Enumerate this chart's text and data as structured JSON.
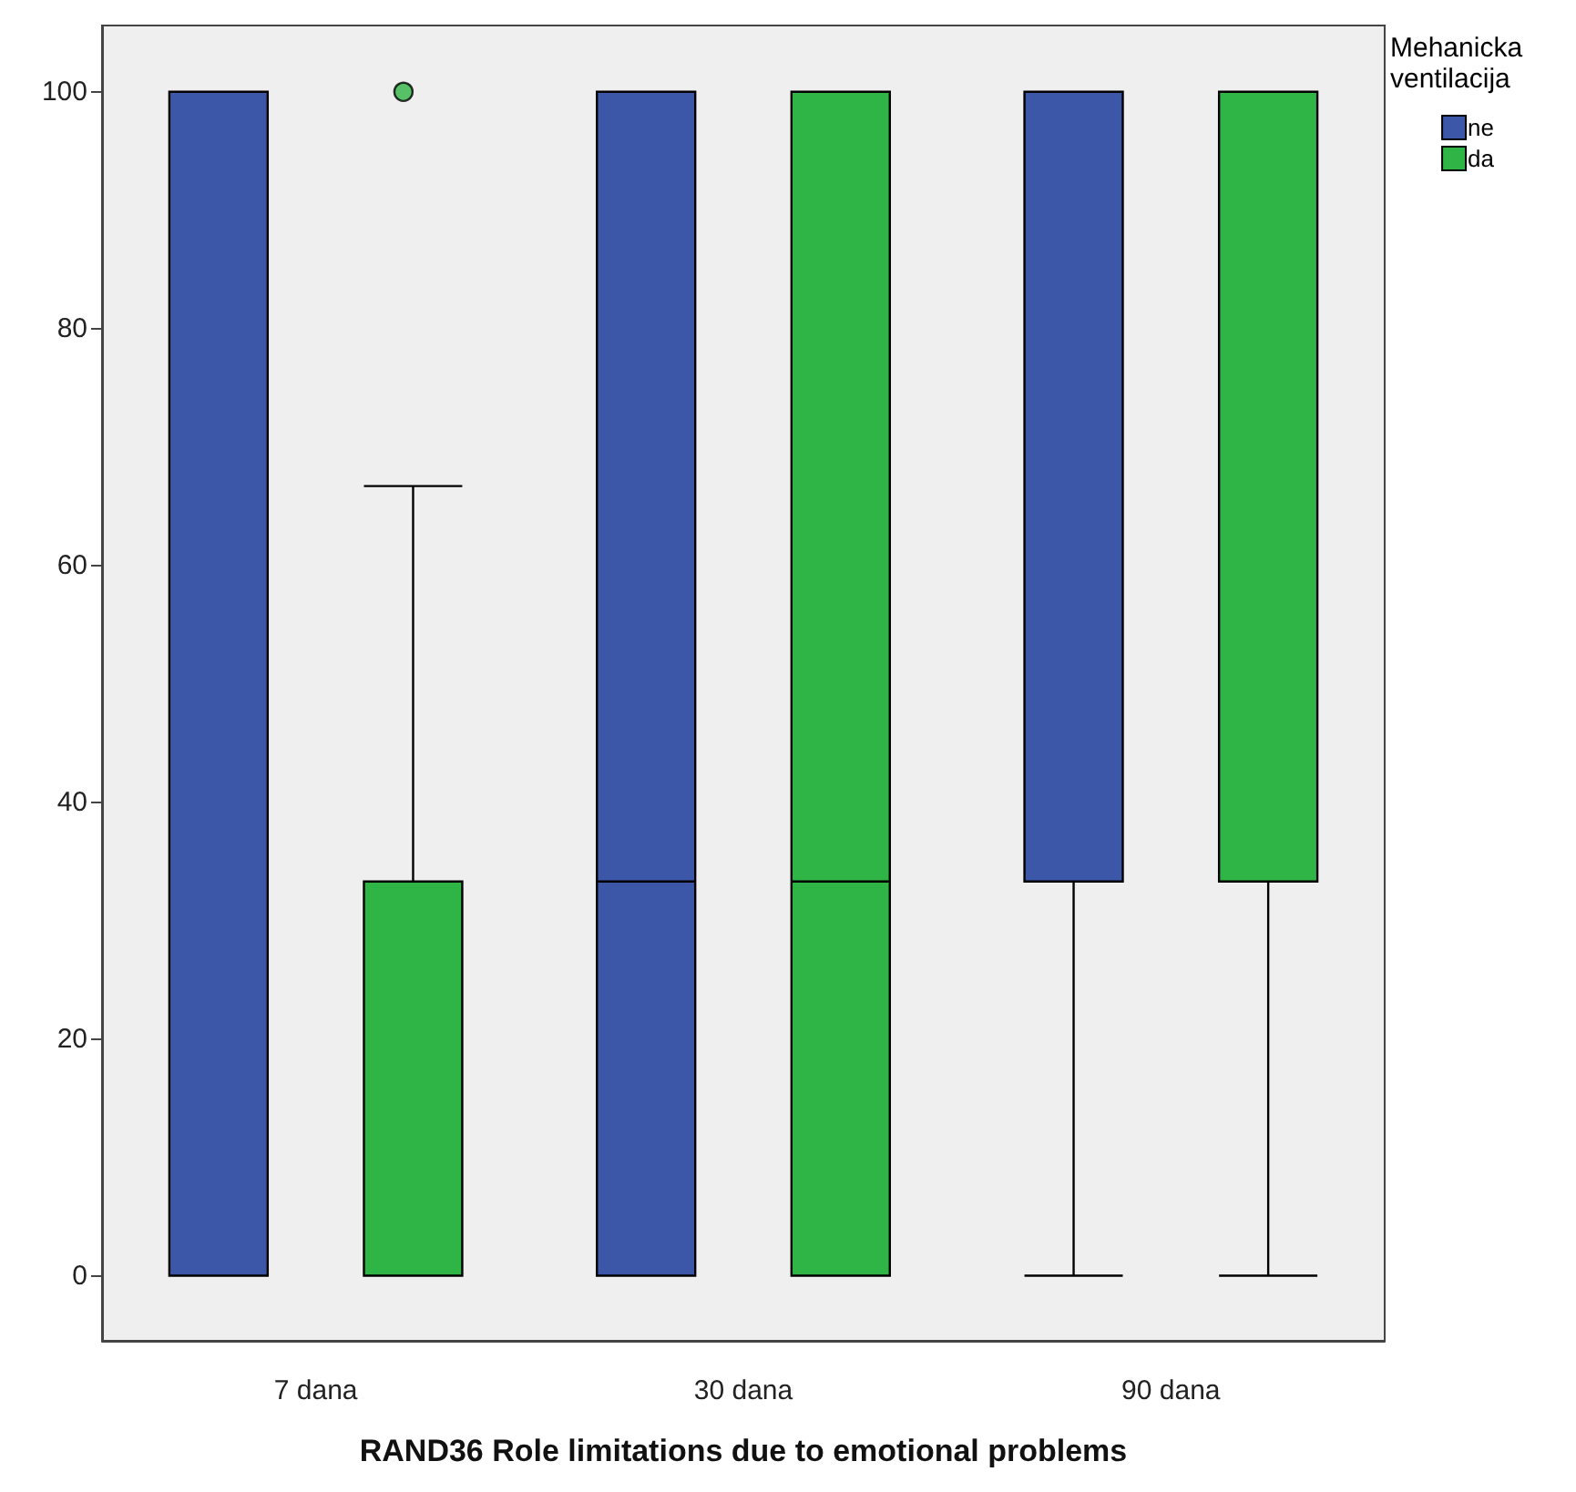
{
  "chart_data": {
    "type": "box",
    "xlabel": "RAND36 Role limitations due to emotional problems",
    "legend_title": "Mehanicka ventilacija",
    "legend": "top right",
    "categories": [
      "7 dana",
      "30 dana",
      "90 dana"
    ],
    "ylim": [
      -5.5,
      105.6
    ],
    "yticks": [
      0,
      20,
      40,
      60,
      80,
      100
    ],
    "grid": false,
    "series": [
      {
        "name": "ne",
        "color": "#3c56a8",
        "boxes": [
          {
            "low": 0,
            "q1": 0,
            "median": 0,
            "q3": 100,
            "high": 100
          },
          {
            "low": 0,
            "q1": 0,
            "median": 33.3,
            "q3": 100,
            "high": 100
          },
          {
            "low": 0,
            "q1": 33.3,
            "median": 100,
            "q3": 100,
            "high": 100
          }
        ]
      },
      {
        "name": "da",
        "color": "#2fb545",
        "boxes": [
          {
            "low": 0,
            "q1": 0,
            "median": 0,
            "q3": 33.3,
            "high": 66.7,
            "outliers": [
              100
            ]
          },
          {
            "low": 0,
            "q1": 0,
            "median": 33.3,
            "q3": 100,
            "high": 100
          },
          {
            "low": 0,
            "q1": 33.3,
            "median": 100,
            "q3": 100,
            "high": 100
          }
        ]
      }
    ]
  }
}
